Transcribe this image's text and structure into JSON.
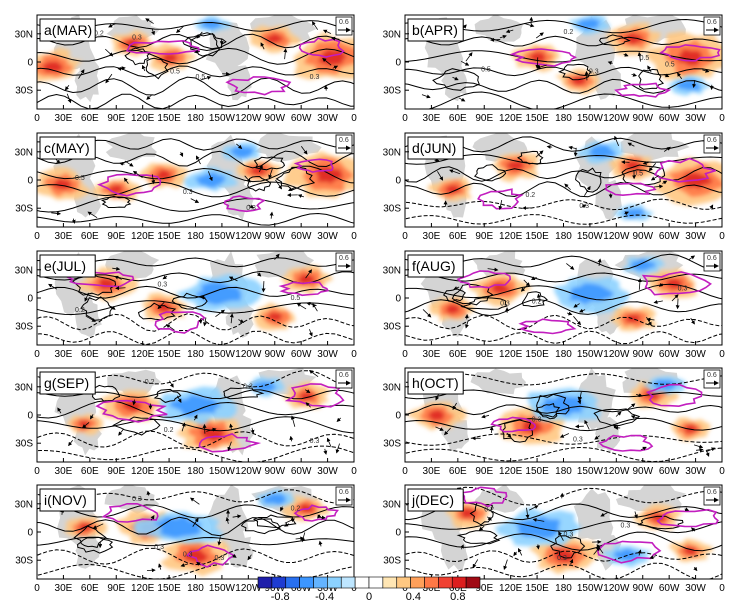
{
  "chart_data": {
    "type": "heatmap",
    "layout": {
      "rows": 5,
      "cols": 2
    },
    "panels": [
      {
        "label": "a(MAR)",
        "hot": [
          [
            0.93,
            0.45,
            0.95
          ],
          [
            0.05,
            0.55,
            0.6
          ],
          [
            0.42,
            0.45,
            0.45
          ],
          [
            0.3,
            0.3,
            0.4
          ],
          [
            0.75,
            0.25,
            0.45
          ]
        ],
        "cold": [
          [
            0.55,
            0.1,
            0.3
          ]
        ],
        "magenta": [
          [
            0.4,
            0.35
          ],
          [
            0.9,
            0.35
          ],
          [
            0.7,
            0.75
          ]
        ],
        "clabels": [
          [
            "0.2",
            0.18,
            0.22
          ],
          [
            "0.3",
            0.3,
            0.26
          ],
          [
            "0.5",
            0.42,
            0.62
          ],
          [
            "0.5",
            0.5,
            0.68
          ],
          [
            "0.3",
            0.86,
            0.68
          ]
        ],
        "land": [
          [
            0.12,
            0.62
          ],
          [
            0.6,
            0.7
          ]
        ]
      },
      {
        "label": "b(APR)",
        "hot": [
          [
            0.9,
            0.45,
            0.95
          ],
          [
            0.72,
            0.25,
            0.55
          ],
          [
            0.42,
            0.45,
            0.45
          ],
          [
            0.55,
            0.7,
            0.4
          ]
        ],
        "cold": [
          [
            0.58,
            0.1,
            0.35
          ],
          [
            0.9,
            0.75,
            0.35
          ]
        ],
        "magenta": [
          [
            0.45,
            0.45
          ],
          [
            0.9,
            0.4
          ],
          [
            0.75,
            0.8
          ]
        ],
        "clabels": [
          [
            "0.2",
            0.5,
            0.2
          ],
          [
            "0.5",
            0.24,
            0.6
          ],
          [
            "0.5",
            0.74,
            0.48
          ],
          [
            "0.5",
            0.82,
            0.55
          ],
          [
            "0.3",
            0.58,
            0.62
          ]
        ],
        "land": [
          [
            0.12,
            0.62
          ],
          [
            0.6,
            0.7
          ]
        ]
      },
      {
        "label": "c(MAY)",
        "hot": [
          [
            0.92,
            0.45,
            0.95
          ],
          [
            0.08,
            0.55,
            0.55
          ],
          [
            0.4,
            0.45,
            0.45
          ],
          [
            0.25,
            0.6,
            0.4
          ],
          [
            0.7,
            0.4,
            0.4
          ]
        ],
        "cold": [
          [
            0.55,
            0.5,
            0.5
          ],
          [
            0.65,
            0.2,
            0.35
          ]
        ],
        "magenta": [
          [
            0.3,
            0.55
          ],
          [
            0.88,
            0.35
          ],
          [
            0.65,
            0.75
          ]
        ],
        "clabels": [
          [
            "0.5",
            0.12,
            0.5
          ],
          [
            "0.3",
            0.46,
            0.65
          ],
          [
            "0.3",
            0.66,
            0.82
          ]
        ],
        "land": [
          [
            0.12,
            0.62
          ],
          [
            0.6,
            0.7
          ]
        ]
      },
      {
        "label": "d(JUN)",
        "hot": [
          [
            0.92,
            0.5,
            0.95
          ],
          [
            0.35,
            0.35,
            0.5
          ],
          [
            0.72,
            0.35,
            0.45
          ],
          [
            0.15,
            0.6,
            0.4
          ]
        ],
        "cold": [
          [
            0.62,
            0.2,
            0.45
          ],
          [
            0.72,
            0.85,
            0.3
          ]
        ],
        "magenta": [
          [
            0.88,
            0.4
          ],
          [
            0.3,
            0.7
          ],
          [
            0.7,
            0.6
          ]
        ],
        "clabels": [
          [
            "0.2",
            0.38,
            0.68
          ],
          [
            "0.5",
            0.72,
            0.45
          ],
          [
            "0.3",
            0.55,
            0.8
          ]
        ],
        "land": [
          [
            0.12,
            0.62
          ],
          [
            0.6,
            0.7
          ]
        ]
      },
      {
        "label": "e(JUL)",
        "hot": [
          [
            0.22,
            0.35,
            0.55
          ],
          [
            0.85,
            0.3,
            0.5
          ],
          [
            0.4,
            0.6,
            0.45
          ],
          [
            0.75,
            0.7,
            0.4
          ]
        ],
        "cold": [
          [
            0.58,
            0.45,
            0.85
          ]
        ],
        "magenta": [
          [
            0.2,
            0.3
          ],
          [
            0.85,
            0.4
          ],
          [
            0.45,
            0.75
          ]
        ],
        "clabels": [
          [
            "0.2",
            0.12,
            0.65
          ],
          [
            "0.3",
            0.38,
            0.38
          ],
          [
            "0.5",
            0.8,
            0.52
          ]
        ],
        "land": [
          [
            0.12,
            0.62
          ],
          [
            0.6,
            0.7
          ]
        ]
      },
      {
        "label": "f(AUG)",
        "hot": [
          [
            0.3,
            0.4,
            0.55
          ],
          [
            0.85,
            0.35,
            0.5
          ],
          [
            0.15,
            0.62,
            0.4
          ],
          [
            0.72,
            0.72,
            0.4
          ]
        ],
        "cold": [
          [
            0.58,
            0.45,
            0.85
          ],
          [
            0.75,
            0.15,
            0.35
          ]
        ],
        "magenta": [
          [
            0.25,
            0.3
          ],
          [
            0.85,
            0.35
          ],
          [
            0.45,
            0.8
          ]
        ],
        "clabels": [
          [
            "0.3",
            0.3,
            0.58
          ],
          [
            "0.2",
            0.4,
            0.56
          ],
          [
            "0.3",
            0.86,
            0.42
          ]
        ],
        "land": [
          [
            0.12,
            0.62
          ],
          [
            0.6,
            0.7
          ]
        ]
      },
      {
        "label": "g(SEP)",
        "hot": [
          [
            0.3,
            0.4,
            0.6
          ],
          [
            0.55,
            0.7,
            0.75
          ],
          [
            0.85,
            0.3,
            0.4
          ],
          [
            0.15,
            0.6,
            0.3
          ]
        ],
        "cold": [
          [
            0.5,
            0.4,
            0.85
          ],
          [
            0.72,
            0.2,
            0.35
          ]
        ],
        "magenta": [
          [
            0.3,
            0.45
          ],
          [
            0.6,
            0.8
          ],
          [
            0.88,
            0.3
          ]
        ],
        "clabels": [
          [
            "0.2",
            0.34,
            0.17
          ],
          [
            "0.2",
            0.4,
            0.68
          ],
          [
            "0.3",
            0.65,
            0.22
          ],
          [
            "0.3",
            0.86,
            0.8
          ]
        ],
        "land": [
          [
            0.12,
            0.62
          ],
          [
            0.6,
            0.7
          ]
        ]
      },
      {
        "label": "h(OCT)",
        "hot": [
          [
            0.4,
            0.62,
            0.7
          ],
          [
            0.1,
            0.5,
            0.5
          ],
          [
            0.78,
            0.28,
            0.45
          ],
          [
            0.9,
            0.65,
            0.35
          ]
        ],
        "cold": [
          [
            0.5,
            0.4,
            0.85
          ],
          [
            0.82,
            0.18,
            0.35
          ]
        ],
        "magenta": [
          [
            0.35,
            0.6
          ],
          [
            0.85,
            0.3
          ],
          [
            0.7,
            0.8
          ]
        ],
        "clabels": [
          [
            "0.3",
            0.4,
            0.57
          ],
          [
            "0.3",
            0.53,
            0.78
          ]
        ],
        "land": [
          [
            0.12,
            0.62
          ],
          [
            0.6,
            0.7
          ]
        ]
      },
      {
        "label": "i(NOV)",
        "hot": [
          [
            0.35,
            0.45,
            0.6
          ],
          [
            0.5,
            0.75,
            0.7
          ],
          [
            0.85,
            0.25,
            0.4
          ],
          [
            0.15,
            0.45,
            0.35
          ]
        ],
        "cold": [
          [
            0.45,
            0.45,
            0.9
          ],
          [
            0.75,
            0.15,
            0.35
          ]
        ],
        "magenta": [
          [
            0.3,
            0.3
          ],
          [
            0.55,
            0.75
          ],
          [
            0.88,
            0.3
          ]
        ],
        "clabels": [
          [
            "0.3",
            0.3,
            0.17
          ],
          [
            "0.3",
            0.37,
            0.68
          ],
          [
            "0.3",
            0.46,
            0.76
          ],
          [
            "0.3",
            0.56,
            0.8
          ],
          [
            "0.2",
            0.8,
            0.27
          ]
        ],
        "land": [
          [
            0.12,
            0.62
          ],
          [
            0.6,
            0.7
          ]
        ]
      },
      {
        "label": "j(DEC)",
        "hot": [
          [
            0.2,
            0.3,
            0.45
          ],
          [
            0.5,
            0.75,
            0.7
          ],
          [
            0.8,
            0.35,
            0.4
          ],
          [
            0.9,
            0.7,
            0.35
          ]
        ],
        "cold": [
          [
            0.42,
            0.45,
            0.9
          ],
          [
            0.7,
            0.75,
            0.45
          ]
        ],
        "magenta": [
          [
            0.25,
            0.12
          ],
          [
            0.7,
            0.7
          ],
          [
            0.9,
            0.35
          ]
        ],
        "clabels": [
          [
            "0.2",
            0.15,
            0.12
          ],
          [
            "0.2",
            0.25,
            0.28
          ],
          [
            "0.3",
            0.5,
            0.55
          ],
          [
            "0.3",
            0.48,
            0.8
          ],
          [
            "0.3",
            0.68,
            0.45
          ]
        ],
        "land": [
          [
            0.12,
            0.62
          ],
          [
            0.6,
            0.7
          ]
        ]
      }
    ],
    "x_ticks": [
      "0",
      "30E",
      "60E",
      "90E",
      "120E",
      "150E",
      "180",
      "150W",
      "120W",
      "90W",
      "60W",
      "30W",
      "0"
    ],
    "y_ticks": [
      "30N",
      "0",
      "30S"
    ],
    "vector_ref": "0.6",
    "colorbar": {
      "ticks": [
        "-0.8",
        "-0.4",
        "0",
        "0.4",
        "0.8"
      ],
      "range": [
        -1,
        1
      ]
    }
  },
  "colors": {
    "scale": [
      "#1e1eaa",
      "#1e3cd2",
      "#2870f0",
      "#3c96ff",
      "#64b4ff",
      "#8cd2ff",
      "#bee6ff",
      "#ffffff",
      "#ffffff",
      "#ffe6b4",
      "#ffc882",
      "#ffa05a",
      "#ff7846",
      "#f04132",
      "#dc1e1e",
      "#a00a14"
    ],
    "land": "#d0d0d0",
    "magenta": "#c21ebf",
    "contour": "#000000"
  }
}
